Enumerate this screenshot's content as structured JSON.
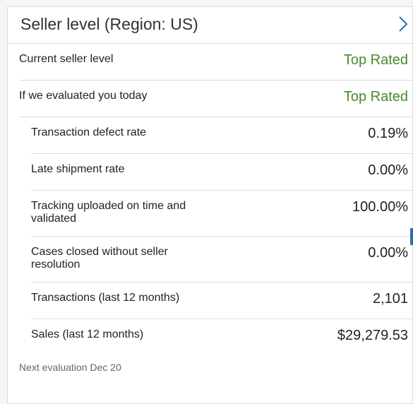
{
  "header": {
    "title": "Seller level (Region: US)",
    "expand_icon": "chevron-right-icon"
  },
  "levels": {
    "current": {
      "label": "Current seller level",
      "value": "Top Rated"
    },
    "today": {
      "label": "If we evaluated you today",
      "value": "Top Rated"
    }
  },
  "metrics": [
    {
      "label": "Transaction defect rate",
      "value": "0.19%"
    },
    {
      "label": "Late shipment rate",
      "value": "0.00%"
    },
    {
      "label": "Tracking uploaded on time and validated",
      "value": "100.00%"
    },
    {
      "label": "Cases closed without seller resolution",
      "value": "0.00%"
    },
    {
      "label": "Transactions (last 12 months)",
      "value": "2,101"
    },
    {
      "label": "Sales (last 12 months)",
      "value": "$29,279.53"
    }
  ],
  "footer": {
    "next_evaluation": "Next evaluation Dec 20"
  },
  "colors": {
    "accent_green": "#4a8a2a",
    "link_blue": "#2a6ebb",
    "divider": "#dcdcdc"
  }
}
